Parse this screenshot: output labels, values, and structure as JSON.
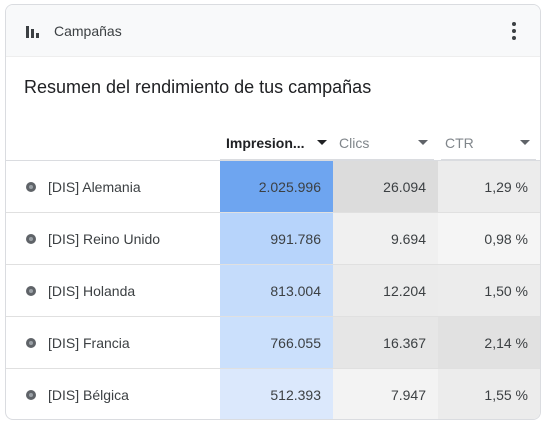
{
  "header": {
    "title": "Campañas",
    "icon": "bar-chart-icon",
    "menu_icon": "more-vert-icon"
  },
  "section_title": "Resumen del rendimiento de tus campañas",
  "columns": [
    {
      "label": "Impresion...",
      "active": true
    },
    {
      "label": "Clics",
      "active": false
    },
    {
      "label": "CTR",
      "active": false
    }
  ],
  "rows": [
    {
      "name": "[DIS] Alemania",
      "impressions": "2.025.996",
      "clicks": "26.094",
      "ctr": "1,29 %",
      "colors": [
        "#6ea5f0",
        "#dcdcdc",
        "#ececec"
      ]
    },
    {
      "name": "[DIS] Reino Unido",
      "impressions": "991.786",
      "clicks": "9.694",
      "ctr": "0,98 %",
      "colors": [
        "#b7d4fb",
        "#f0f0f0",
        "#f5f5f5"
      ]
    },
    {
      "name": "[DIS] Holanda",
      "impressions": "813.004",
      "clicks": "12.204",
      "ctr": "1,50 %",
      "colors": [
        "#c5dcfb",
        "#ebebeb",
        "#ececec"
      ]
    },
    {
      "name": "[DIS] Francia",
      "impressions": "766.055",
      "clicks": "16.367",
      "ctr": "2,14 %",
      "colors": [
        "#cbe0fc",
        "#e6e6e6",
        "#e1e1e1"
      ]
    },
    {
      "name": "[DIS] Bélgica",
      "impressions": "512.393",
      "clicks": "7.947",
      "ctr": "1,55 %",
      "colors": [
        "#dbe8fc",
        "#f3f3f3",
        "#ececec"
      ]
    }
  ],
  "colors": {
    "accent_blue": "#6ea5f0",
    "header_bg": "#f8f9fa",
    "border": "#dadce0"
  }
}
